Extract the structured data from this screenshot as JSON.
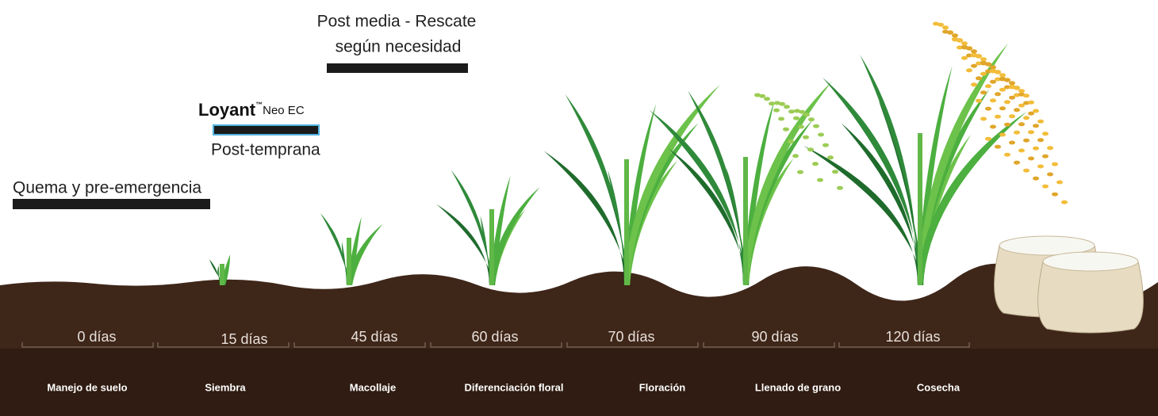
{
  "annotations": {
    "post_media": {
      "line1": "Post media - Rescate",
      "line2": "según necesidad"
    },
    "loyant": {
      "brand": "Loyant",
      "trademark": "™",
      "product": "Neo EC",
      "timing": "Post-temprana"
    },
    "quema": "Quema y pre-emergencia"
  },
  "stages": [
    {
      "days": "0 días",
      "phase": "Manejo de suelo"
    },
    {
      "days": "15 días",
      "phase": "Siembra"
    },
    {
      "days": "45 días",
      "phase": "Macollaje"
    },
    {
      "days": "60 días",
      "phase": "Diferenciación floral"
    },
    {
      "days": "70 días",
      "phase": "Floración"
    },
    {
      "days": "90 días",
      "phase": "Llenado de grano"
    },
    {
      "days": "120 días",
      "phase": "Cosecha"
    }
  ]
}
